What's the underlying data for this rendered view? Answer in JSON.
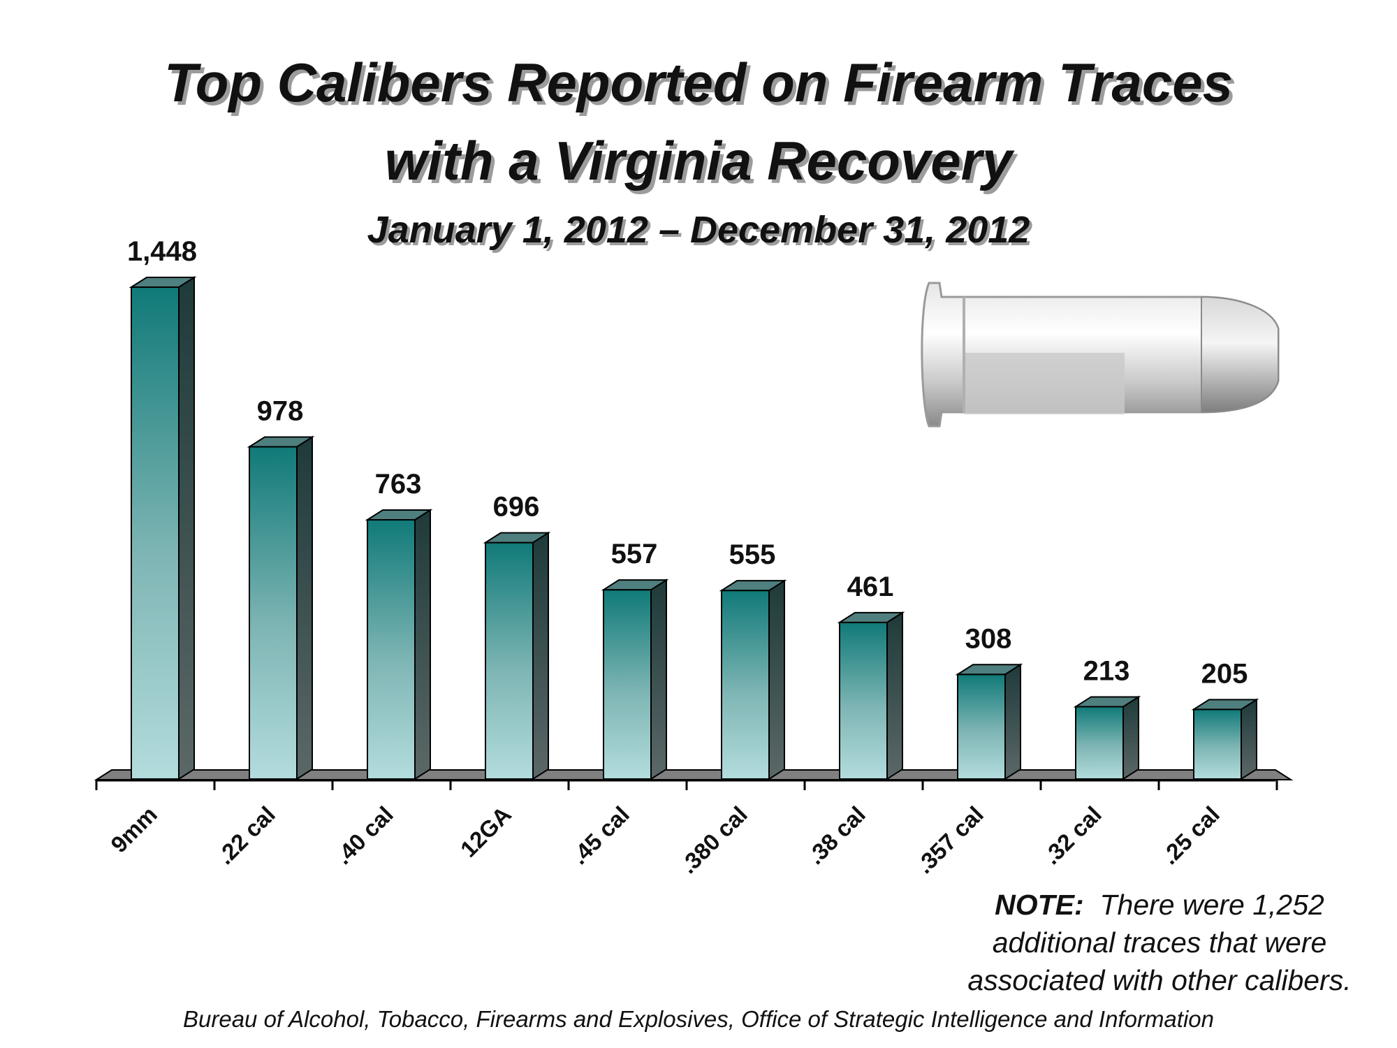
{
  "chart_data": {
    "type": "bar",
    "title_lines": [
      "Top Calibers Reported on Firearm Traces",
      "with a Virginia Recovery"
    ],
    "subtitle": "January 1, 2012 – December 31, 2012",
    "categories": [
      "9mm",
      ".22 cal",
      ".40 cal",
      "12GA",
      ".45 cal",
      ".380 cal",
      ".38 cal",
      ".357 cal",
      ".32 cal",
      ".25 cal"
    ],
    "values": [
      1448,
      978,
      763,
      696,
      557,
      555,
      461,
      308,
      213,
      205
    ],
    "value_labels": [
      "1,448",
      "978",
      "763",
      "696",
      "557",
      "555",
      "461",
      "308",
      "213",
      "205"
    ],
    "xlabel": "",
    "ylabel": "",
    "grid": false,
    "legend": "none",
    "colors": {
      "bar_top": "#107a78",
      "bar_bottom": "#b0dadb",
      "bar_side": "#3a4a4a",
      "bar_cap": "#4f7f7e",
      "floor": "#808080"
    }
  },
  "note": {
    "label": "NOTE:",
    "text_line1": "There were 1,252",
    "text_line2": "additional traces that were",
    "text_line3": "associated with other calibers."
  },
  "source": "Bureau of Alcohol, Tobacco, Firearms and Explosives, Office of Strategic Intelligence and Information",
  "image": {
    "description_icon": "bullet-cartridge-icon"
  }
}
